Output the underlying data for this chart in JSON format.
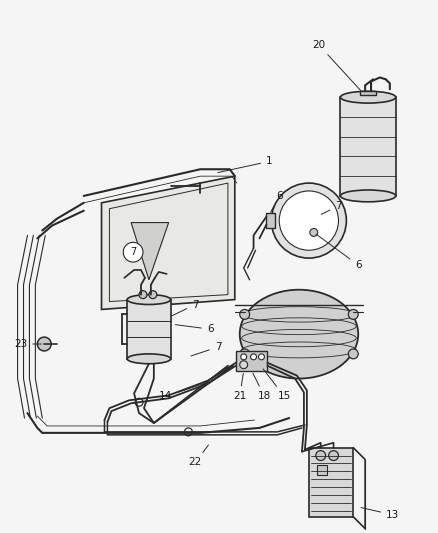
{
  "background_color": "#f5f5f5",
  "line_color": "#2a2a2a",
  "label_color": "#1a1a1a",
  "fig_width": 4.39,
  "fig_height": 5.33,
  "dpi": 100,
  "label_fontsize": 7.5,
  "lw_main": 0.9,
  "lw_thick": 1.5,
  "lw_thin": 0.6,
  "component_gray": "#c8c8c8",
  "component_gray2": "#d8d8d8",
  "component_gray3": "#e2e2e2"
}
